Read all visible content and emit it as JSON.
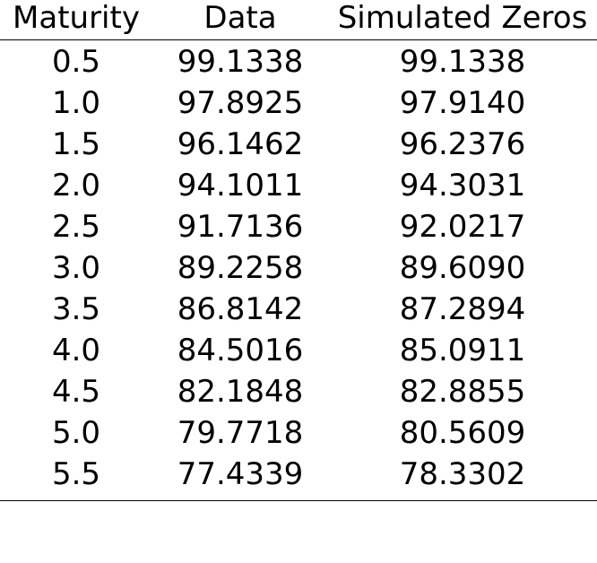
{
  "table": {
    "headers": [
      "Maturity",
      "Data",
      "Simulated Zeros"
    ],
    "rows": [
      [
        "0.5",
        "99.1338",
        "99.1338"
      ],
      [
        "1.0",
        "97.8925",
        "97.9140"
      ],
      [
        "1.5",
        "96.1462",
        "96.2376"
      ],
      [
        "2.0",
        "94.1011",
        "94.3031"
      ],
      [
        "2.5",
        "91.7136",
        "92.0217"
      ],
      [
        "3.0",
        "89.2258",
        "89.6090"
      ],
      [
        "3.5",
        "86.8142",
        "87.2894"
      ],
      [
        "4.0",
        "84.5016",
        "85.0911"
      ],
      [
        "4.5",
        "82.1848",
        "82.8855"
      ],
      [
        "5.0",
        "79.7718",
        "80.5609"
      ],
      [
        "5.5",
        "77.4339",
        "78.3302"
      ]
    ]
  }
}
